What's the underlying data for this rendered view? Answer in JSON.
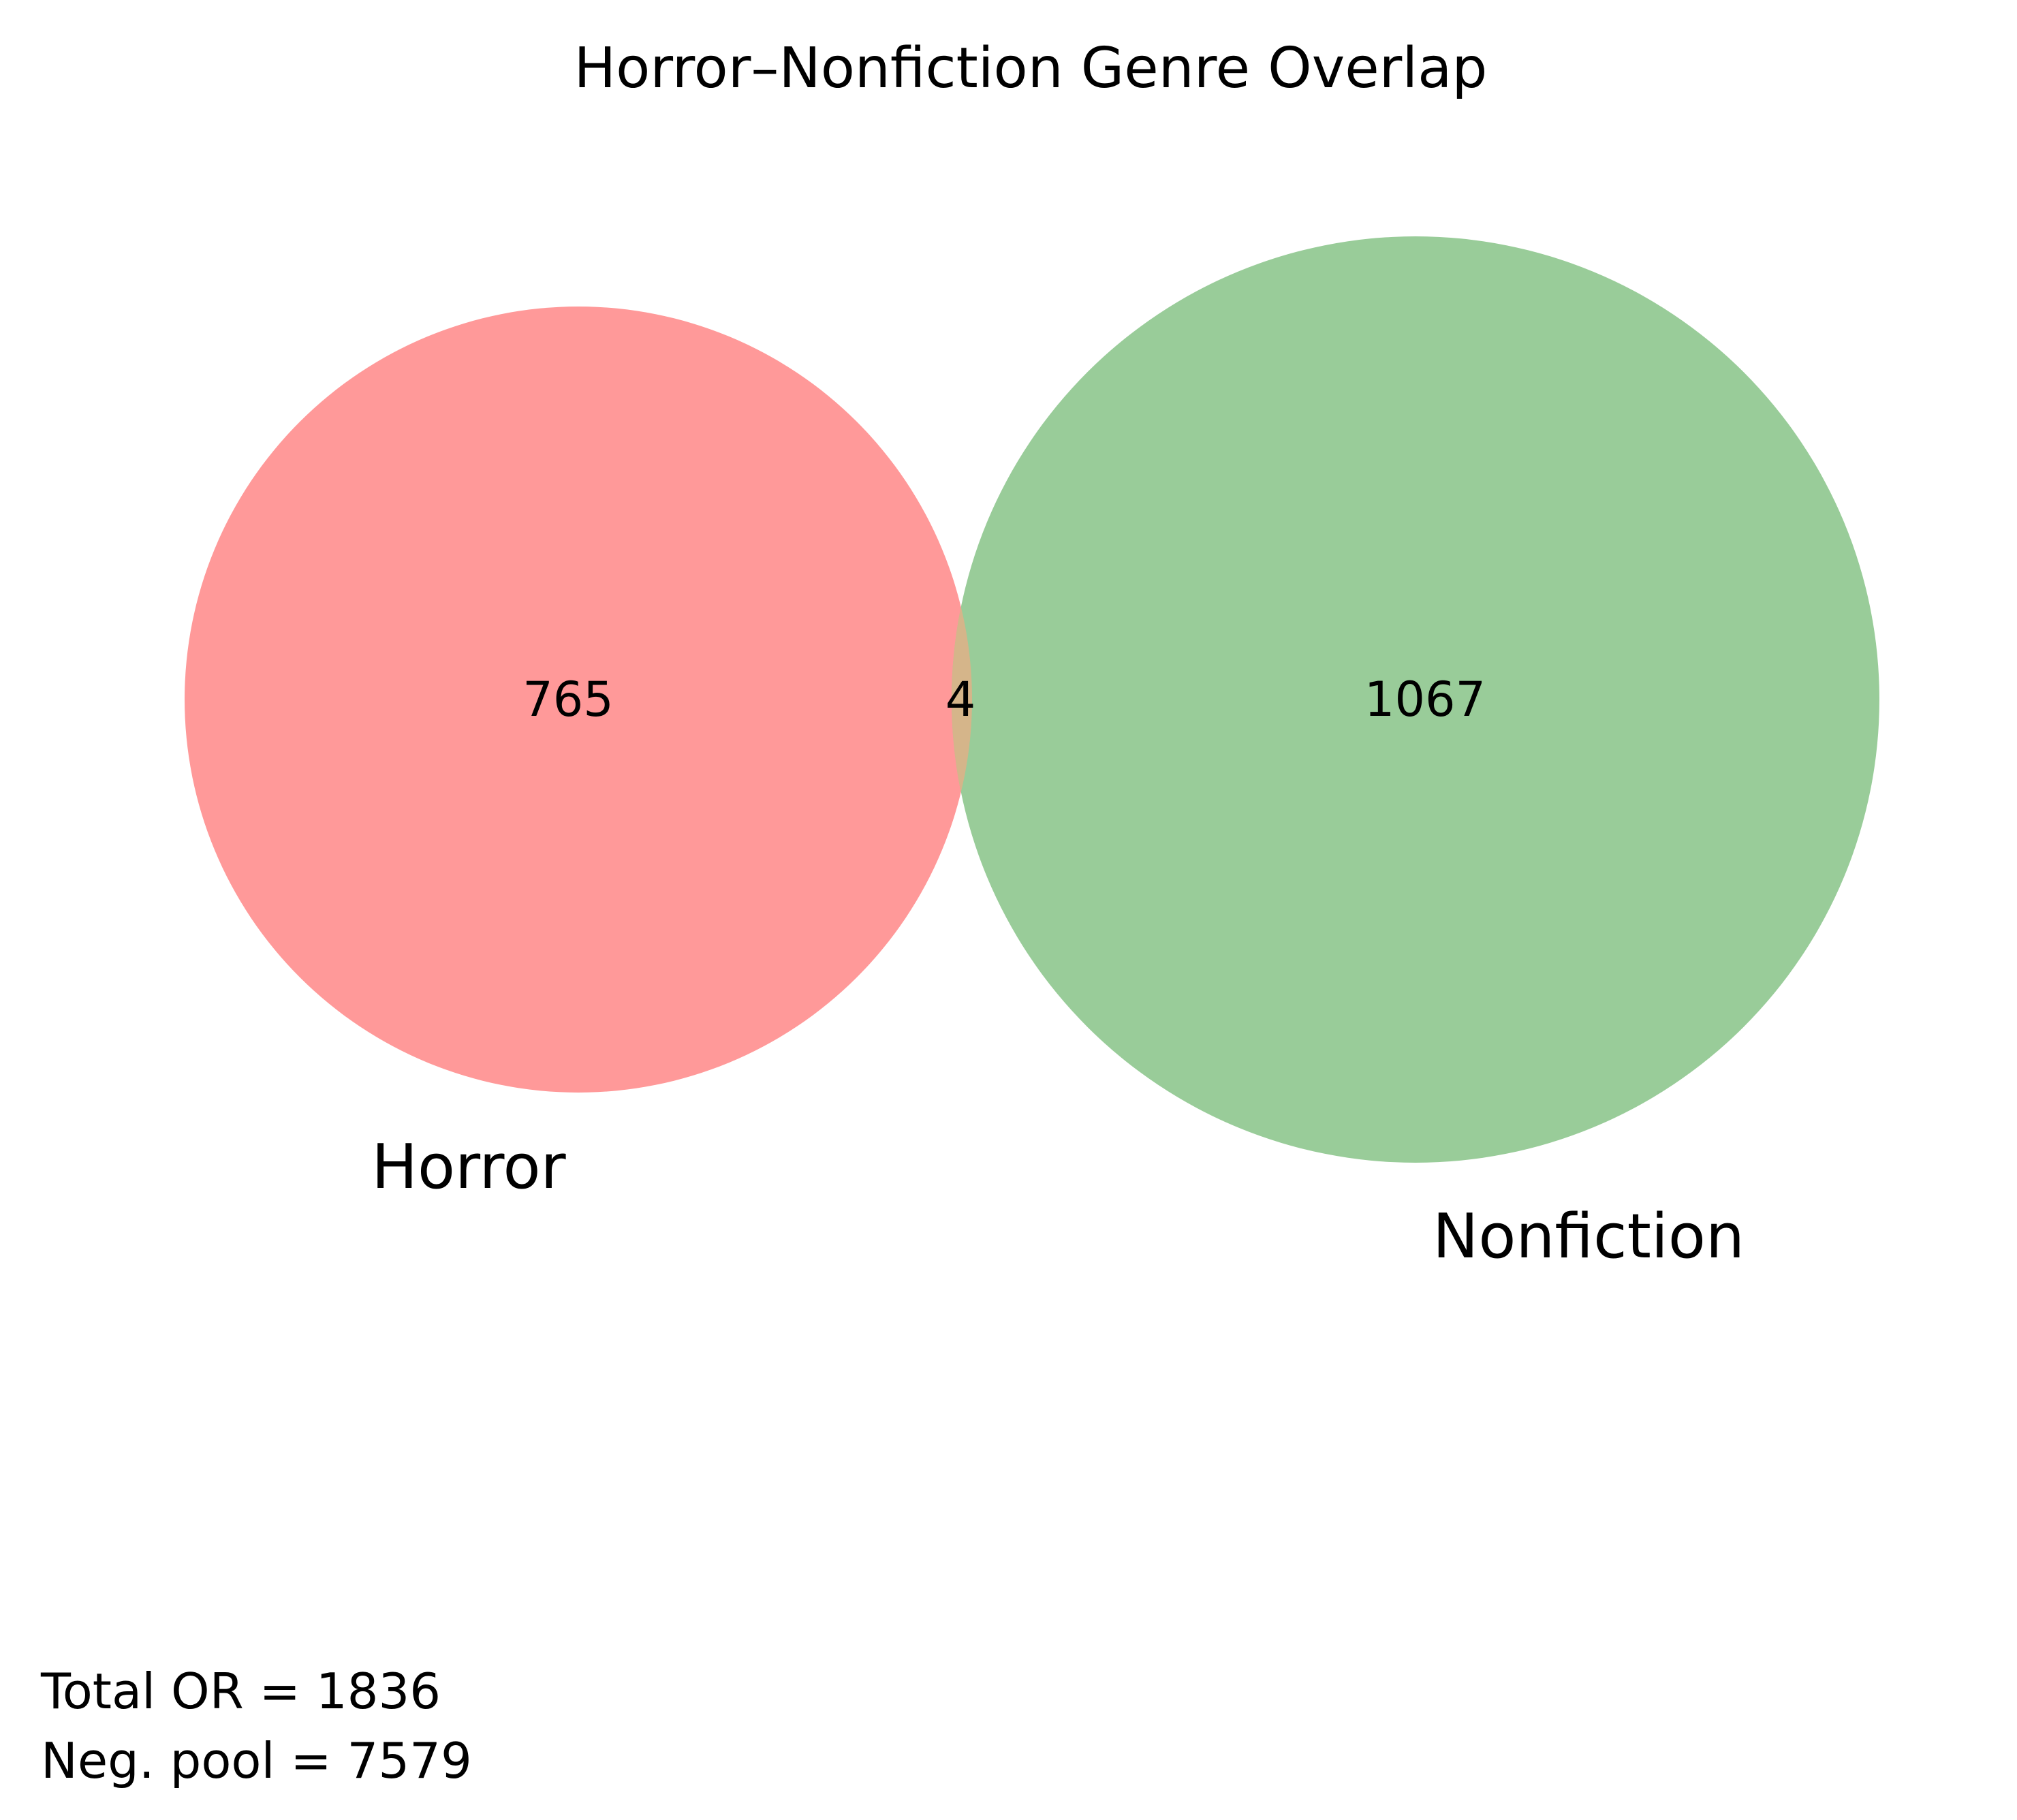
{
  "chart_data": {
    "type": "venn",
    "title": "Horror–Nonfiction Genre Overlap",
    "sets": [
      {
        "name": "Horror",
        "only_count": "765",
        "color": "#ff9999"
      },
      {
        "name": "Nonfiction",
        "only_count": "1067",
        "color": "#99cc99"
      }
    ],
    "intersection": {
      "count": "4",
      "color": "#d5b58a"
    },
    "footnotes": {
      "total": "Total OR = 1836",
      "neg_pool": "Neg. pool = 7579"
    }
  }
}
